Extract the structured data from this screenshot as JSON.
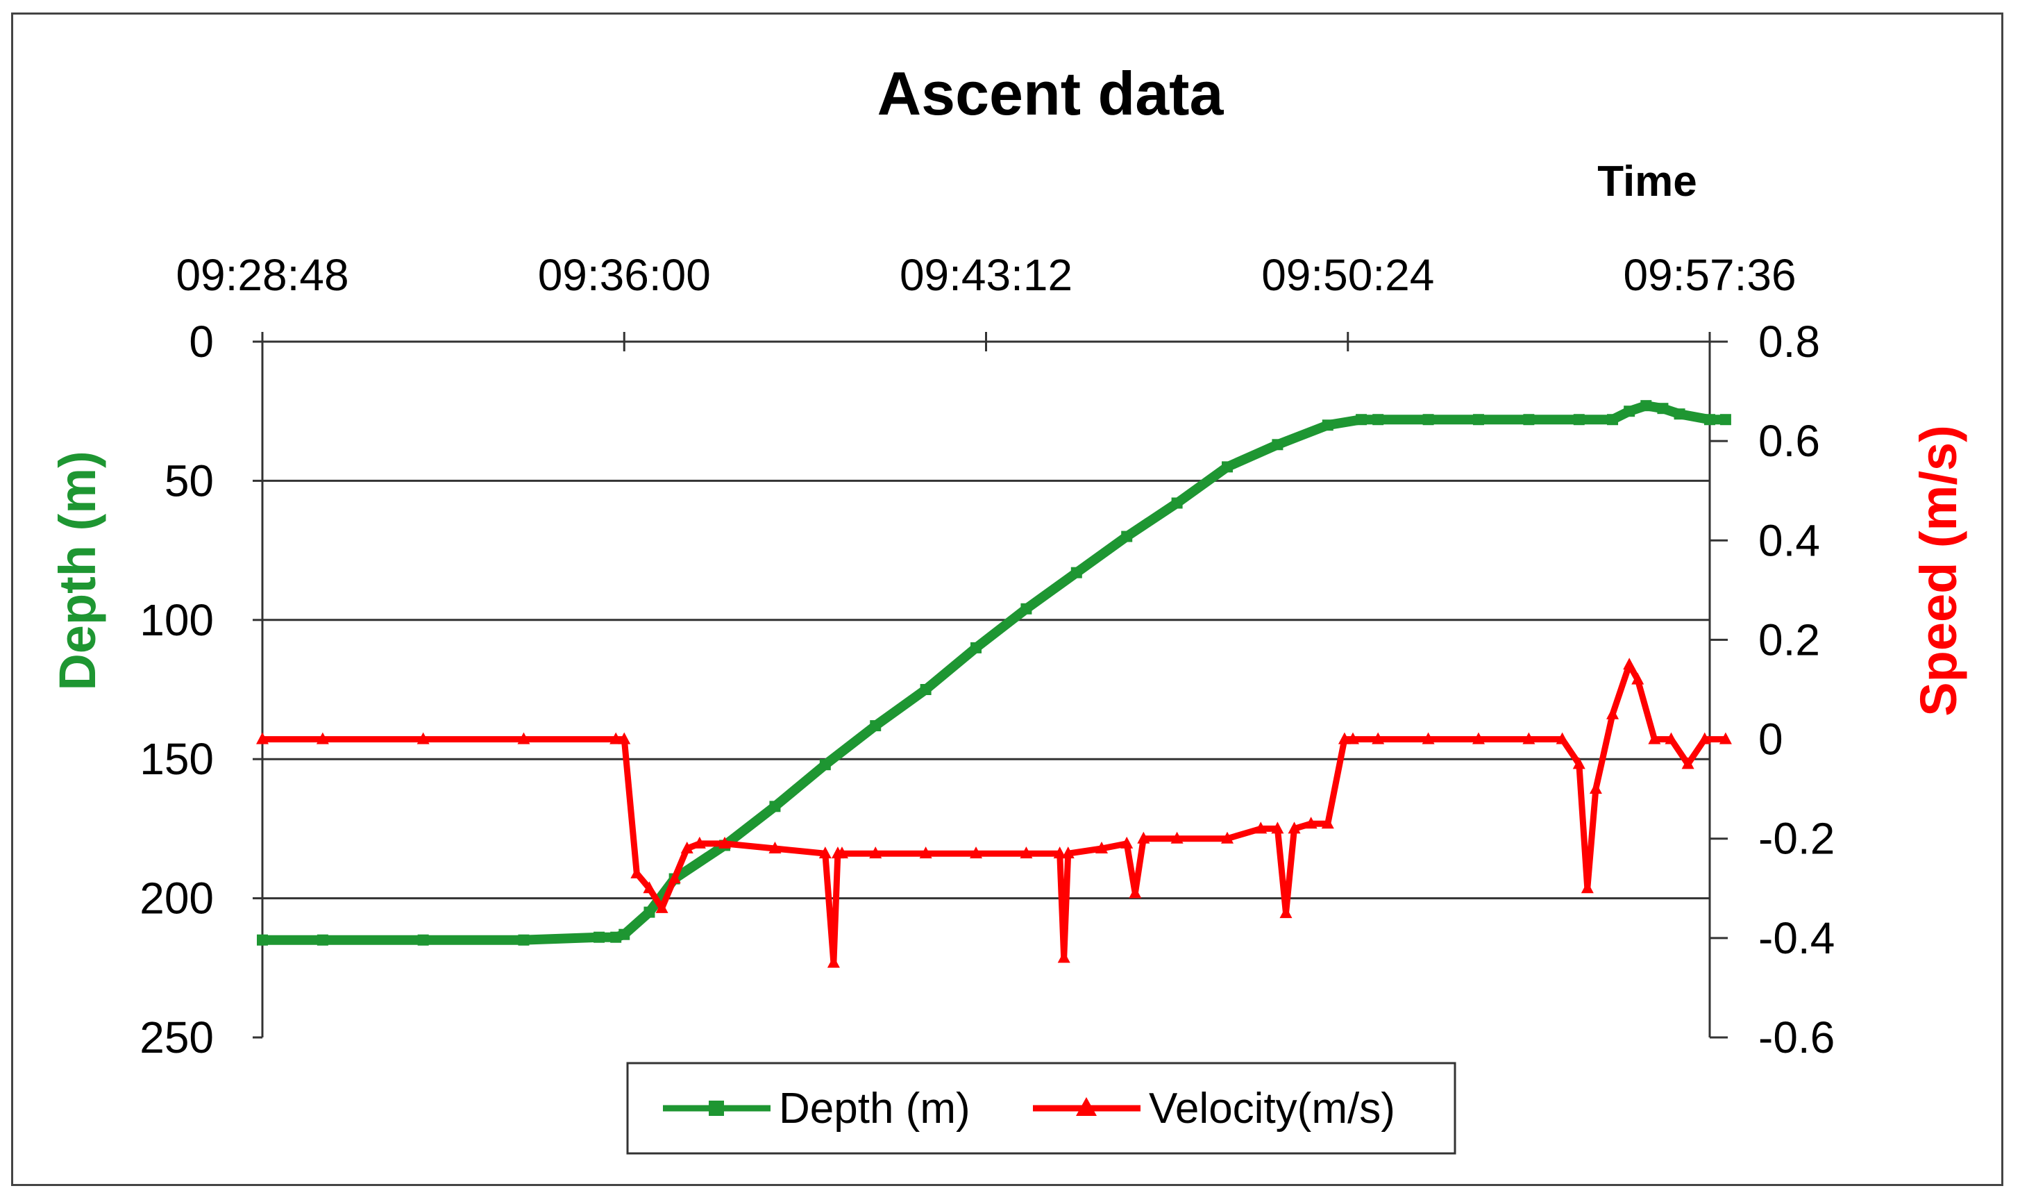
{
  "chart_data": {
    "type": "line",
    "title": "Ascent data",
    "xlabel": "Time",
    "ylabel_left": "Depth (m)",
    "ylabel_right": "Speed (m/s)",
    "x_ticks": [
      "09:28:48",
      "09:36:00",
      "09:43:12",
      "09:50:24",
      "09:57:36"
    ],
    "xlim": [
      "09:28:48",
      "09:57:36"
    ],
    "y_left_ticks": [
      "0",
      "50",
      "100",
      "150",
      "200",
      "250"
    ],
    "y_left_lim": [
      0,
      250
    ],
    "y_left_reversed": true,
    "y_right_ticks": [
      "0.8",
      "0.6",
      "0.4",
      "0.2",
      "0",
      "-0.2",
      "-0.4",
      "-0.6"
    ],
    "y_right_lim": [
      -0.6,
      0.8
    ],
    "x_axis_position": "top",
    "grid": "horizontal",
    "legend_position": "bottom-center",
    "colors": {
      "depth": "#1e9632",
      "velocity": "#ff0000",
      "title": "#000000"
    },
    "series": [
      {
        "name": "Depth (m)",
        "axis": "left",
        "x": [
          "09:28:48",
          "09:30:00",
          "09:32:00",
          "09:34:00",
          "09:35:30",
          "09:35:50",
          "09:36:00",
          "09:36:30",
          "09:37:00",
          "09:38:00",
          "09:39:00",
          "09:40:00",
          "09:41:00",
          "09:42:00",
          "09:43:00",
          "09:44:00",
          "09:45:00",
          "09:46:00",
          "09:47:00",
          "09:48:00",
          "09:49:00",
          "09:50:00",
          "09:50:40",
          "09:51:00",
          "09:52:00",
          "09:53:00",
          "09:54:00",
          "09:55:00",
          "09:55:40",
          "09:56:00",
          "09:56:20",
          "09:56:40",
          "09:57:00",
          "09:57:36",
          "09:57:55"
        ],
        "y": [
          215,
          215,
          215,
          215,
          214,
          214,
          213,
          205,
          193,
          181,
          167,
          152,
          138,
          125,
          110,
          96,
          83,
          70,
          58,
          45,
          37,
          30,
          28,
          28,
          28,
          28,
          28,
          28,
          28,
          25,
          23,
          24,
          26,
          28,
          28
        ]
      },
      {
        "name": "Velocity(m/s)",
        "axis": "right",
        "x": [
          "09:28:48",
          "09:30:00",
          "09:32:00",
          "09:34:00",
          "09:35:50",
          "09:36:00",
          "09:36:15",
          "09:36:30",
          "09:36:45",
          "09:37:00",
          "09:37:15",
          "09:37:30",
          "09:38:00",
          "09:39:00",
          "09:40:00",
          "09:40:10",
          "09:40:15",
          "09:40:20",
          "09:41:00",
          "09:42:00",
          "09:43:00",
          "09:44:00",
          "09:44:40",
          "09:44:45",
          "09:44:50",
          "09:45:30",
          "09:46:00",
          "09:46:10",
          "09:46:20",
          "09:47:00",
          "09:48:00",
          "09:48:40",
          "09:49:00",
          "09:49:10",
          "09:49:20",
          "09:49:40",
          "09:50:00",
          "09:50:20",
          "09:50:30",
          "09:51:00",
          "09:52:00",
          "09:53:00",
          "09:54:00",
          "09:54:40",
          "09:55:00",
          "09:55:10",
          "09:55:20",
          "09:55:40",
          "09:56:00",
          "09:56:10",
          "09:56:30",
          "09:56:50",
          "09:57:10",
          "09:57:30",
          "09:57:55"
        ],
        "y": [
          0.0,
          0.0,
          0.0,
          0.0,
          0.0,
          0.0,
          -0.27,
          -0.3,
          -0.34,
          -0.28,
          -0.22,
          -0.21,
          -0.21,
          -0.22,
          -0.23,
          -0.45,
          -0.23,
          -0.23,
          -0.23,
          -0.23,
          -0.23,
          -0.23,
          -0.23,
          -0.44,
          -0.23,
          -0.22,
          -0.21,
          -0.31,
          -0.2,
          -0.2,
          -0.2,
          -0.18,
          -0.18,
          -0.35,
          -0.18,
          -0.17,
          -0.17,
          0.0,
          0.0,
          0.0,
          0.0,
          0.0,
          0.0,
          0.0,
          -0.05,
          -0.3,
          -0.1,
          0.05,
          0.15,
          0.12,
          0.0,
          0.0,
          -0.05,
          0.0,
          0.0
        ]
      }
    ]
  }
}
